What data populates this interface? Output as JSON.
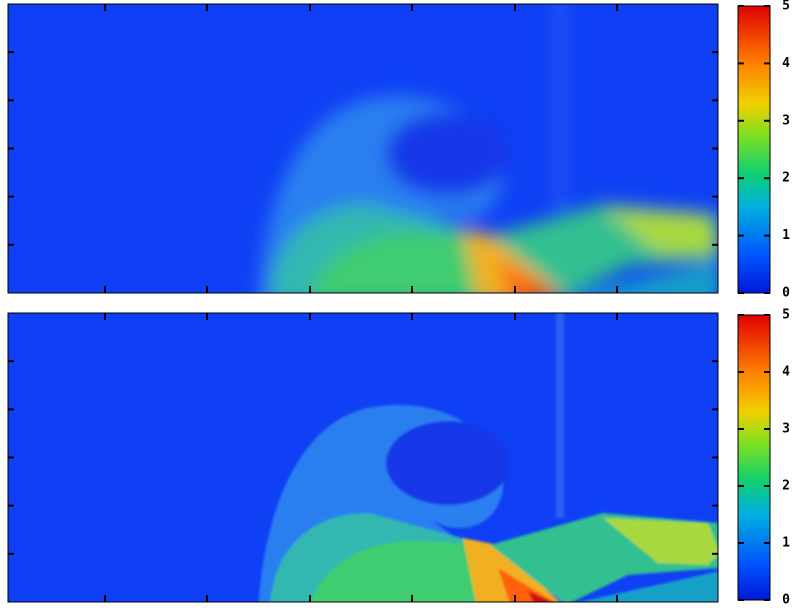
{
  "chart_data": [
    {
      "type": "heatmap",
      "clim": [
        0,
        5
      ],
      "cticks": [
        0,
        1,
        2,
        3,
        4,
        5
      ]
    },
    {
      "type": "heatmap",
      "clim": [
        0,
        5
      ],
      "cticks": [
        0,
        1,
        2,
        3,
        4,
        5
      ]
    }
  ]
}
